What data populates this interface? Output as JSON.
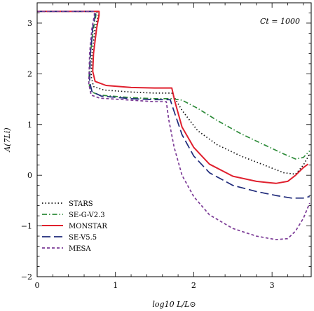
{
  "chart_data": {
    "type": "line",
    "xlabel": "log10 L/L⊙",
    "ylabel": "A(7Li)",
    "xlim": [
      0,
      3.5
    ],
    "ylim": [
      -2,
      3.4
    ],
    "x_ticks": [
      0,
      1,
      2,
      3
    ],
    "y_ticks": [
      -2,
      -1,
      0,
      1,
      2,
      3
    ],
    "annotation": "Ct = 1000",
    "legend_position": "bottom-left",
    "grid": false,
    "series": [
      {
        "name": "STARS",
        "color": "#111111",
        "dash": "dotted",
        "x": [
          0,
          0.76,
          0.78,
          0.74,
          0.7,
          0.69,
          0.72,
          0.85,
          1.2,
          1.5,
          1.72,
          1.85,
          2.05,
          2.3,
          2.6,
          2.9,
          3.15,
          3.3,
          3.4,
          3.48
        ],
        "y": [
          3.23,
          3.23,
          3.15,
          2.9,
          2.4,
          1.95,
          1.75,
          1.68,
          1.64,
          1.62,
          1.62,
          1.28,
          0.88,
          0.6,
          0.38,
          0.2,
          0.05,
          0.02,
          0.2,
          0.42
        ]
      },
      {
        "name": "SE-G-V2.3",
        "color": "#2e8b3a",
        "dash": "dashdot",
        "x": [
          0,
          0.75,
          0.75,
          0.72,
          0.68,
          0.66,
          0.68,
          0.8,
          1.2,
          1.5,
          1.72,
          1.85,
          2.05,
          2.3,
          2.6,
          2.9,
          3.15,
          3.3,
          3.4,
          3.48
        ],
        "y": [
          3.23,
          3.23,
          3.15,
          2.9,
          2.4,
          1.85,
          1.65,
          1.58,
          1.53,
          1.51,
          1.51,
          1.48,
          1.32,
          1.08,
          0.82,
          0.6,
          0.42,
          0.32,
          0.35,
          0.48
        ]
      },
      {
        "name": "MONSTAR",
        "color": "#e0202e",
        "dash": "solid",
        "x": [
          0,
          0.79,
          0.79,
          0.76,
          0.72,
          0.71,
          0.74,
          0.88,
          1.2,
          1.5,
          1.72,
          1.76,
          1.85,
          2.0,
          2.2,
          2.5,
          2.8,
          3.05,
          3.2,
          3.3,
          3.4,
          3.46
        ],
        "y": [
          3.23,
          3.23,
          3.15,
          2.9,
          2.4,
          2.05,
          1.85,
          1.77,
          1.73,
          1.72,
          1.72,
          1.45,
          0.95,
          0.55,
          0.22,
          -0.02,
          -0.12,
          -0.16,
          -0.12,
          0.0,
          0.15,
          0.22
        ]
      },
      {
        "name": "SE-V5.5",
        "color": "#1f2a7a",
        "dash": "dashed",
        "x": [
          0,
          0.74,
          0.74,
          0.71,
          0.68,
          0.67,
          0.7,
          0.82,
          1.2,
          1.5,
          1.7,
          1.74,
          1.85,
          2.0,
          2.2,
          2.5,
          2.8,
          3.05,
          3.25,
          3.4,
          3.48
        ],
        "y": [
          3.23,
          3.23,
          3.15,
          2.9,
          2.4,
          1.85,
          1.65,
          1.56,
          1.51,
          1.49,
          1.49,
          1.3,
          0.8,
          0.38,
          0.05,
          -0.2,
          -0.32,
          -0.4,
          -0.45,
          -0.45,
          -0.42
        ]
      },
      {
        "name": "MESA",
        "color": "#7b3a96",
        "dash": "shortdash",
        "x": [
          0,
          0.73,
          0.73,
          0.7,
          0.67,
          0.66,
          0.69,
          0.8,
          1.2,
          1.5,
          1.65,
          1.68,
          1.75,
          1.85,
          2.0,
          2.2,
          2.5,
          2.8,
          3.05,
          3.2,
          3.3,
          3.4,
          3.48
        ],
        "y": [
          3.23,
          3.23,
          3.15,
          2.9,
          2.4,
          1.8,
          1.58,
          1.52,
          1.48,
          1.45,
          1.45,
          1.1,
          0.55,
          0.0,
          -0.42,
          -0.78,
          -1.05,
          -1.2,
          -1.27,
          -1.25,
          -1.1,
          -0.85,
          -0.55
        ]
      }
    ]
  }
}
